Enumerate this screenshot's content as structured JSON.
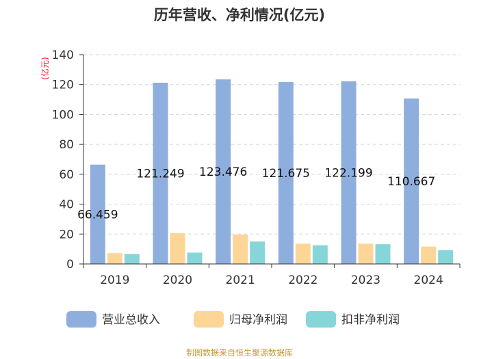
{
  "chart_data": {
    "type": "bar",
    "title": "历年营收、净利情况(亿元)",
    "ylabel": "(亿元)",
    "xlabel": "",
    "ylim": [
      0,
      140
    ],
    "yticks": [
      0,
      20,
      40,
      60,
      80,
      100,
      120,
      140
    ],
    "grid": true,
    "legend_position": "bottom",
    "categories": [
      "2019",
      "2020",
      "2021",
      "2022",
      "2023",
      "2024"
    ],
    "series": [
      {
        "name": "营业总收入",
        "color": "#8eaedd",
        "values": [
          66.459,
          121.249,
          123.476,
          121.675,
          122.199,
          110.667
        ],
        "labels": [
          "66.459",
          "121.249",
          "123.476",
          "121.675",
          "122.199",
          "110.667"
        ]
      },
      {
        "name": "归母净利润",
        "color": "#fdd597",
        "values": [
          7.2,
          20.6,
          19.6,
          13.6,
          13.6,
          11.6
        ]
      },
      {
        "name": "扣非净利润",
        "color": "#86d6d9",
        "values": [
          6.7,
          7.6,
          15.0,
          12.5,
          13.2,
          9.2
        ]
      }
    ],
    "source": "制图数据来自恒生聚源数据库"
  }
}
